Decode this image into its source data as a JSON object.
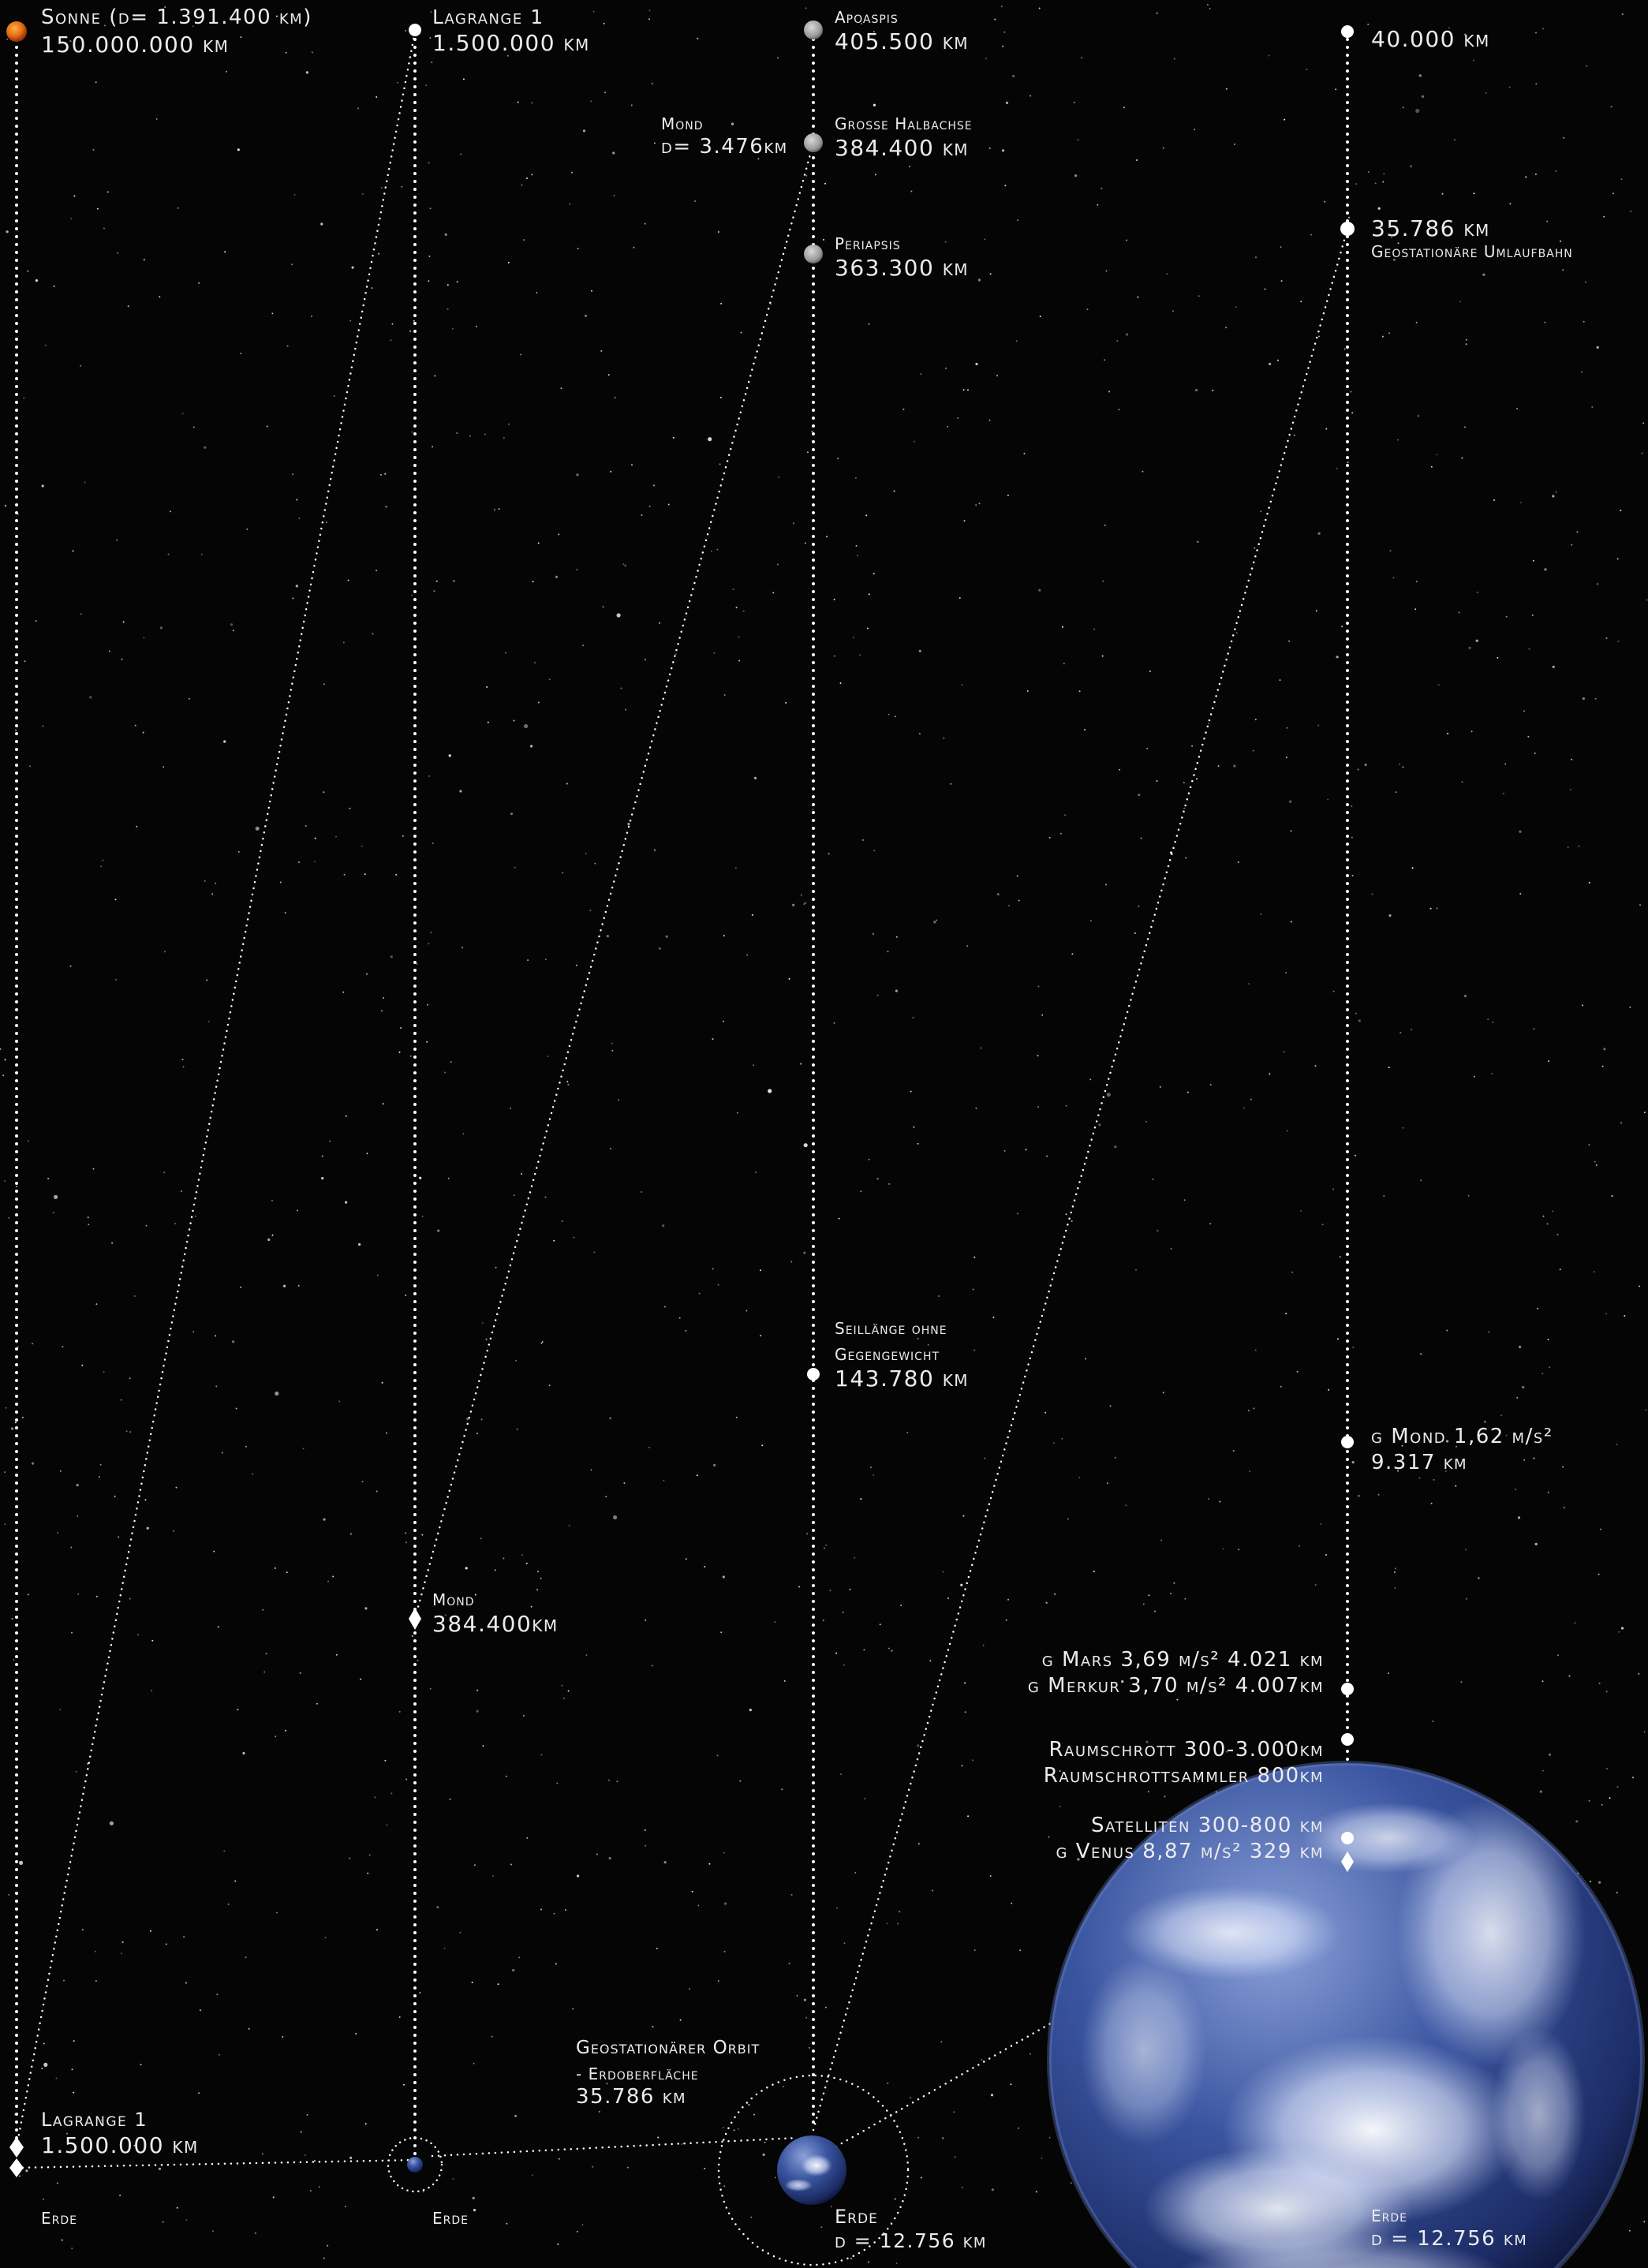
{
  "colors": {
    "background": "#040504",
    "line": "#ffffff",
    "sun": "#e06a12",
    "earth_ocean": "#26408a",
    "moon": "#9a9a9a"
  },
  "col1": {
    "sun_name": "Sonne (d= 1.391.400 km)",
    "sun_distance": "150.000.000 km",
    "l1_name": "Lagrange 1",
    "l1_distance": "1.500.000 km",
    "earth": "Erde"
  },
  "col2": {
    "l1_name": "Lagrange 1",
    "l1_distance": "1.500.000 km",
    "moon_name": "Mond",
    "moon_distance": "384.400km",
    "earth": "Erde"
  },
  "col3": {
    "apoapsis_name": "Apoaspis",
    "apoapsis_distance": "405.500 km",
    "moon_name": "Mond",
    "moon_diameter": "d= 3.476km",
    "semi_axis_name": "Grosse Halbachse",
    "semi_axis_distance": "384.400 km",
    "periapsis_name": "Periapsis",
    "periapsis_distance": "363.300 km",
    "rope_line1": "Seillänge ohne",
    "rope_line2": "Gegengewicht",
    "rope_distance": "143.780 km",
    "geo_line1": "Geostationärer Orbit",
    "geo_line2": "- Erdoberfläche",
    "geo_distance": "35.786 km",
    "earth": "Erde",
    "earth_diameter": "d = 12.756 km"
  },
  "col4": {
    "top_distance": "40.000 km",
    "geo_distance": "35.786 km",
    "geo_name": "Geostationäre Umlaufbahn",
    "moon_g": "g Mond 1,62 m/s²",
    "moon_g_distance": "9.317 km",
    "mars_g": "g Mars 3,69 m/s² 4.021 km",
    "mercury_g": "g Merkur 3,70 m/s² 4.007km",
    "debris": "Raumschrott 300-3.000km",
    "debris_collector": "Raumschrottsammler  800km",
    "satellites": "Satelliten 300-800 km",
    "venus_g": "g Venus 8,87 m/s²  329 km",
    "earth": "Erde",
    "earth_diameter": "d = 12.756 km"
  }
}
